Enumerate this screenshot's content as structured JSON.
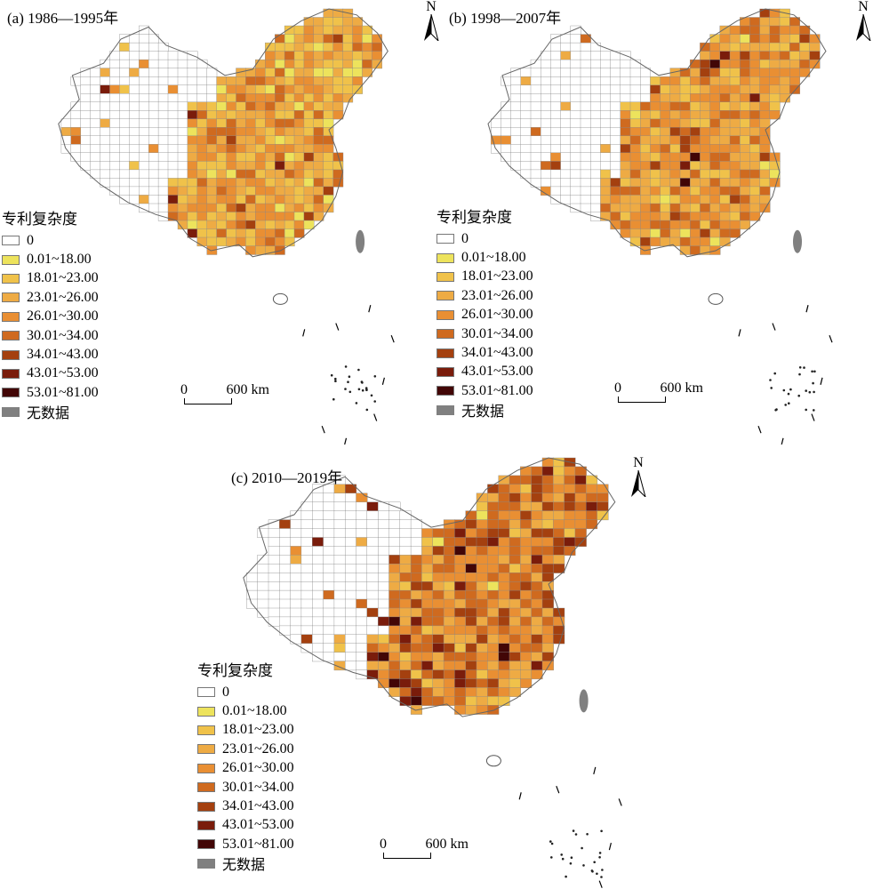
{
  "legend": {
    "title": "专利复杂度",
    "classes": [
      {
        "label": "0",
        "color": "#ffffff"
      },
      {
        "label": "0.01~18.00",
        "color": "#ede35c"
      },
      {
        "label": "18.01~23.00",
        "color": "#f0c24a"
      },
      {
        "label": "23.01~26.00",
        "color": "#eeab44"
      },
      {
        "label": "26.01~30.00",
        "color": "#e98f33"
      },
      {
        "label": "30.01~34.00",
        "color": "#cf6a1f"
      },
      {
        "label": "34.01~43.00",
        "color": "#a4400f"
      },
      {
        "label": "43.01~53.00",
        "color": "#7a1c0b"
      },
      {
        "label": "53.01~81.00",
        "color": "#420606"
      },
      {
        "label": "无数据",
        "color": "#808080"
      }
    ]
  },
  "scale": {
    "zero": "0",
    "distance": "600",
    "unit": "km"
  },
  "north_label": "N",
  "panels": [
    {
      "id": "a",
      "title": "(a) 1986—1995年"
    },
    {
      "id": "b",
      "title": "(b) 1998—2007年"
    },
    {
      "id": "c",
      "title": "(c) 2010—2019年"
    }
  ]
}
